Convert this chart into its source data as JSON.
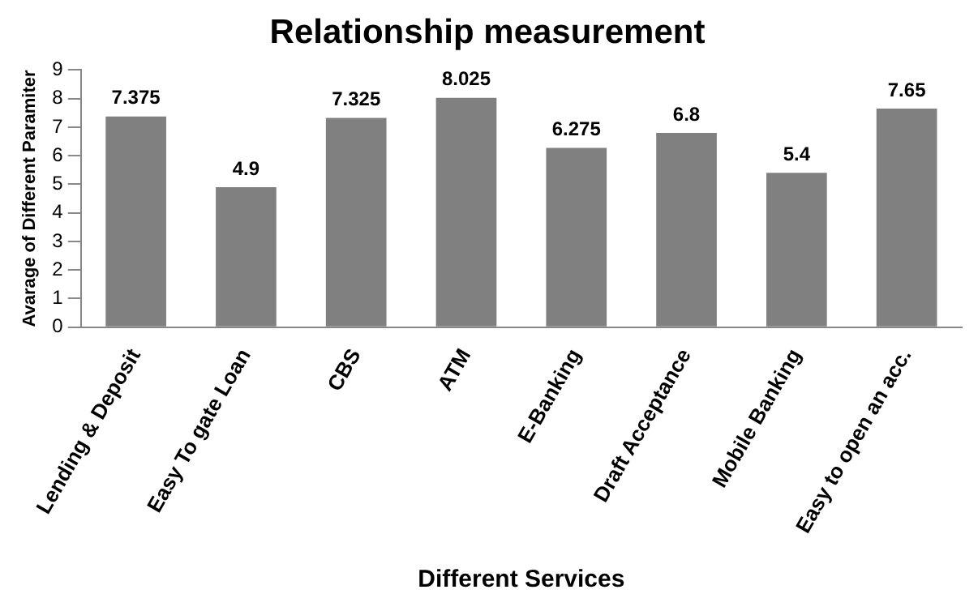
{
  "chart_data": {
    "type": "bar",
    "title": "Relationship measurement",
    "xlabel": "Different Services",
    "ylabel": "Avarage of Different Paramiter",
    "categories": [
      "Lending & Deposit",
      "Easy To gate Loan",
      "CBS",
      "ATM",
      "E-Banking",
      "Draft Acceptance",
      "Mobile Banking",
      "Easy to open an acc."
    ],
    "values": [
      7.375,
      4.9,
      7.325,
      8.025,
      6.275,
      6.8,
      5.4,
      7.65
    ],
    "color": "#808080",
    "ylim": [
      0,
      9
    ],
    "yticks": [
      0,
      1,
      2,
      3,
      4,
      5,
      6,
      7,
      8,
      9
    ],
    "grid": false,
    "legend": false,
    "data_labels": true
  }
}
